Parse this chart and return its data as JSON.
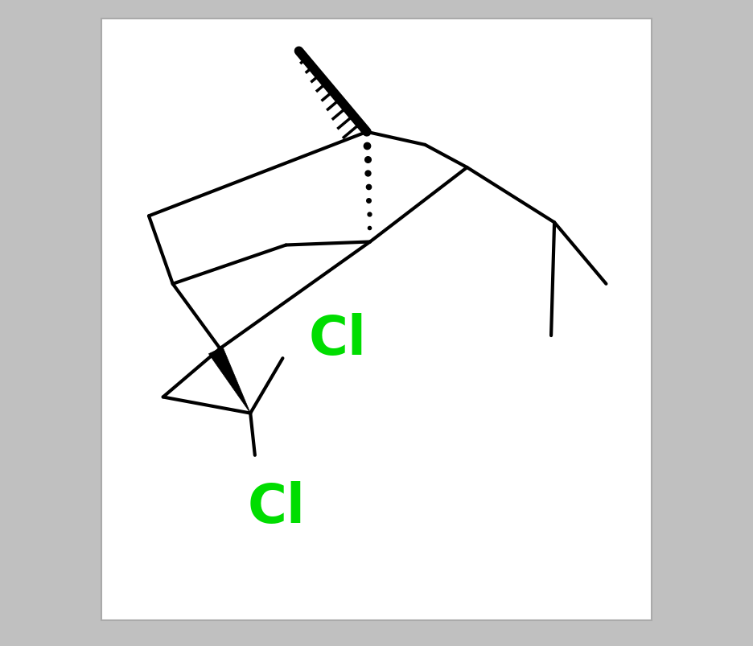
{
  "background_color": "#c0c0c0",
  "box_color": "#ffffff",
  "bond_color": "#000000",
  "cl_color": "#00dd00",
  "fig_width": 9.36,
  "fig_height": 8.04,
  "dpi": 100
}
